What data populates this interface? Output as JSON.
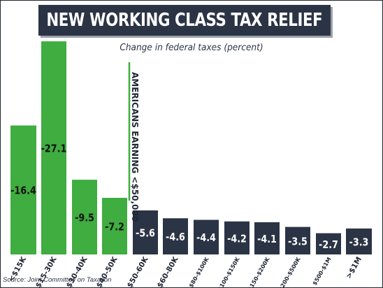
{
  "title": "NEW WORKING CLASS TAX RELIEF",
  "source": "Source: Joint Committee on Taxation",
  "colors": {
    "green": "#3fad3f",
    "navy": "#2b3445",
    "title_bg": "#2b3445"
  },
  "chart_data": {
    "type": "bar",
    "title": "Change in federal taxes (percent)",
    "categories": [
      "<$15K",
      "$15-30K",
      "$30-40K",
      "$40-50K",
      "$50-60K",
      "$60-80K",
      "$80-$100K",
      "$100-$150K",
      "$150-$200K",
      "$200-$500K",
      "$500-$1M",
      ">$1M"
    ],
    "values": [
      -16.4,
      -27.1,
      -9.5,
      -7.2,
      -5.6,
      -4.6,
      -4.4,
      -4.2,
      -4.1,
      -3.5,
      -2.7,
      -3.3
    ],
    "value_labels": [
      "-16.4",
      "-27.1",
      "-9.5",
      "-7.2",
      "-5.6",
      "-4.6",
      "-4.4",
      "-4.2",
      "-4.1",
      "-3.5",
      "-2.7",
      "-3.3"
    ],
    "highlight_group": [
      "<$15K",
      "$15-30K",
      "$30-40K",
      "$40-50K"
    ],
    "annotation": "AMERICANS EARNING <$50,000",
    "xlabel": "",
    "ylabel": "",
    "grid": false,
    "legend": "none"
  }
}
